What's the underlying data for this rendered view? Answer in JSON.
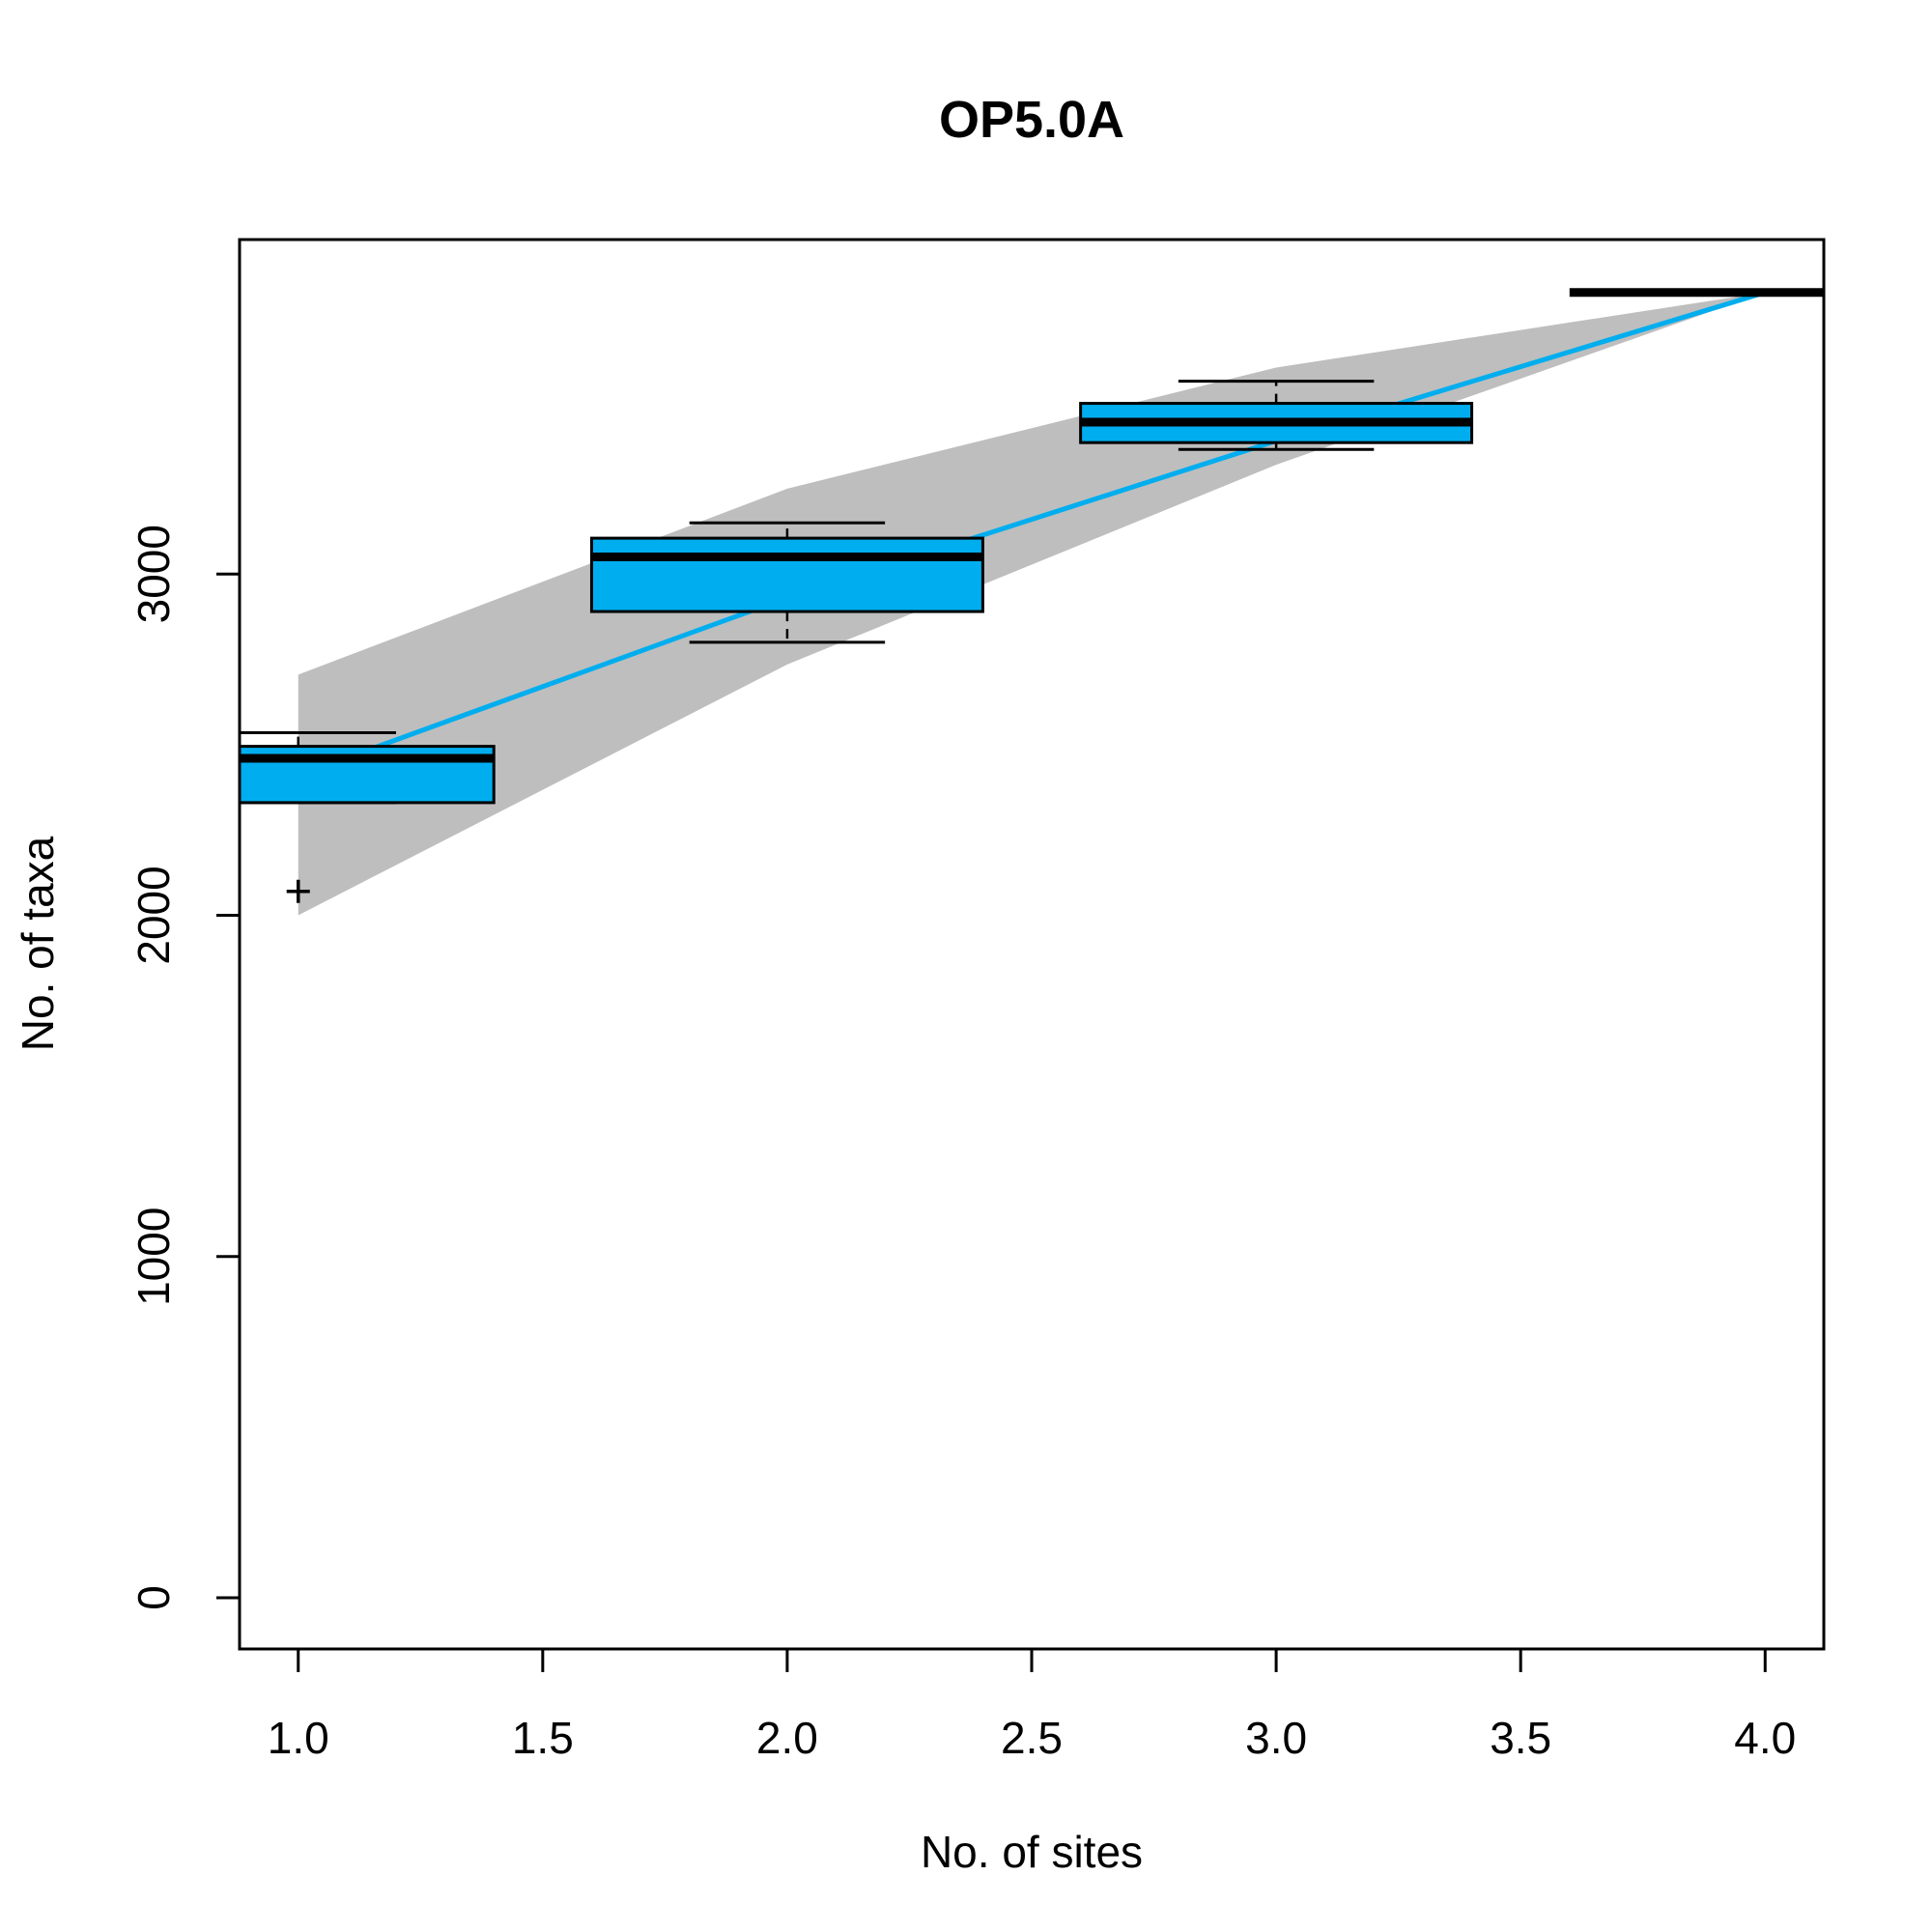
{
  "chart_data": {
    "type": "boxplot",
    "title": "OP5.0A",
    "xlabel": "No. of sites",
    "ylabel": "No. of taxa",
    "xlim": [
      0.88,
      4.12
    ],
    "ylim": [
      -150,
      3980
    ],
    "x_ticks": [
      {
        "value": 1.0,
        "label": "1.0"
      },
      {
        "value": 1.5,
        "label": "1.5"
      },
      {
        "value": 2.0,
        "label": "2.0"
      },
      {
        "value": 2.5,
        "label": "2.5"
      },
      {
        "value": 3.0,
        "label": "3.0"
      },
      {
        "value": 3.5,
        "label": "3.5"
      },
      {
        "value": 4.0,
        "label": "4.0"
      }
    ],
    "y_ticks": [
      {
        "value": 0,
        "label": "0"
      },
      {
        "value": 1000,
        "label": "1000"
      },
      {
        "value": 2000,
        "label": "2000"
      },
      {
        "value": 3000,
        "label": "3000"
      }
    ],
    "grid": false,
    "colors": {
      "box_fill": "#00AEEF",
      "line": "#00AEEF",
      "band": "#BEBEBE",
      "ink": "#000000"
    },
    "confidence_band": {
      "x": [
        1,
        2,
        3,
        4
      ],
      "upper": [
        2705,
        3250,
        3605,
        3825
      ],
      "lower": [
        2000,
        2735,
        3320,
        3825
      ]
    },
    "accumulation_curve": {
      "x": [
        1,
        2,
        3,
        4
      ],
      "y": [
        2410,
        2930,
        3390,
        3825
      ]
    },
    "boxes": [
      {
        "x": 1,
        "whisker_low": 2330,
        "q1": 2330,
        "median": 2460,
        "q3": 2495,
        "whisker_high": 2535,
        "outliers": [
          2070
        ]
      },
      {
        "x": 2,
        "whisker_low": 2800,
        "q1": 2890,
        "median": 3050,
        "q3": 3105,
        "whisker_high": 3150,
        "outliers": []
      },
      {
        "x": 3,
        "whisker_low": 3365,
        "q1": 3385,
        "median": 3445,
        "q3": 3500,
        "whisker_high": 3565,
        "outliers": []
      },
      {
        "x": 4,
        "whisker_low": 3825,
        "q1": 3825,
        "median": 3825,
        "q3": 3825,
        "whisker_high": 3825,
        "outliers": []
      }
    ]
  }
}
